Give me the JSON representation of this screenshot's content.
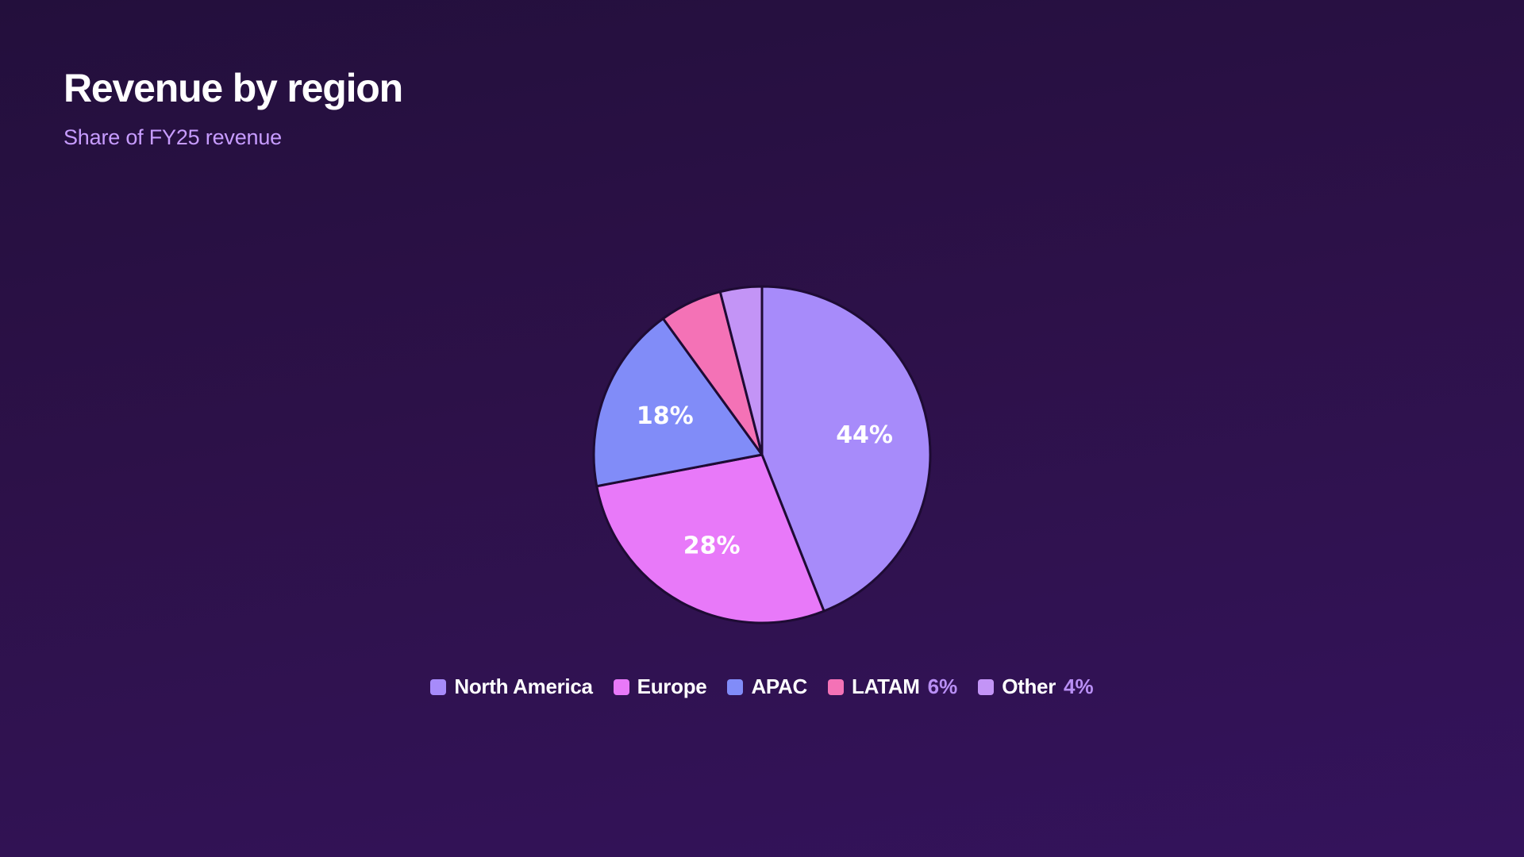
{
  "header": {
    "title": "Revenue by region",
    "subtitle": "Share of FY25 revenue"
  },
  "chart_data": {
    "type": "pie",
    "title": "Revenue by region",
    "subtitle": "Share of FY25 revenue",
    "unit": "%",
    "legend_position": "bottom",
    "slices": [
      {
        "name": "North America",
        "value": 44,
        "color": "#a78bfa",
        "label": "44%",
        "legend_value": ""
      },
      {
        "name": "Europe",
        "value": 28,
        "color": "#e879f9",
        "label": "28%",
        "legend_value": ""
      },
      {
        "name": "APAC",
        "value": 18,
        "color": "#818cf8",
        "label": "18%",
        "legend_value": ""
      },
      {
        "name": "LATAM",
        "value": 6,
        "color": "#f472b6",
        "label": "",
        "legend_value": "6%"
      },
      {
        "name": "Other",
        "value": 4,
        "color": "#c394f6",
        "label": "",
        "legend_value": "4%"
      }
    ],
    "background": "#2a0f47",
    "separator_color": "#1e0b34"
  }
}
